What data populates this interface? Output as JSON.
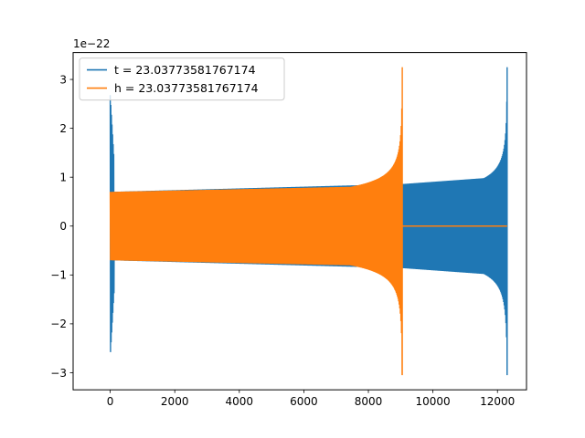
{
  "chart_data": {
    "type": "line",
    "title": "",
    "xlabel": "",
    "ylabel": "",
    "offset_label": "1e−22",
    "xlim": [
      -1150,
      12900
    ],
    "ylim": [
      -3.35,
      3.55
    ],
    "x_ticks": [
      0,
      2000,
      4000,
      6000,
      8000,
      10000,
      12000
    ],
    "x_tick_labels": [
      "0",
      "2000",
      "4000",
      "6000",
      "8000",
      "10000",
      "12000"
    ],
    "y_ticks": [
      -3,
      -2,
      -1,
      0,
      1,
      2,
      3
    ],
    "y_tick_labels": [
      "−3",
      "−2",
      "−1",
      "0",
      "1",
      "2",
      "3"
    ],
    "grid": false,
    "legend_position": "top-left",
    "series": [
      {
        "name": "t = 23.03773581767174",
        "color": "#1f77b4",
        "x_start": 0,
        "x_end": 12300,
        "segments": [
          {
            "x_start": 0,
            "x_end": 9050,
            "initial_peak": 2.68,
            "base_amplitude": 0.7,
            "late_amplitude": 0.86
          },
          {
            "x_start": 9050,
            "x_end": 12300,
            "base_amplitude": 0.86,
            "final_peak": 3.25,
            "final_trough": -3.05
          }
        ]
      },
      {
        "name": "h = 23.03773581767174",
        "color": "#ff7f0e",
        "x_start": 0,
        "x_end": 12300,
        "segments": [
          {
            "x_start": 0,
            "x_end": 9050,
            "base_amplitude": 0.7,
            "final_peak": 3.25,
            "final_trough": -3.05
          },
          {
            "x_start": 9050,
            "x_end": 12300,
            "value": 0
          }
        ]
      }
    ]
  }
}
